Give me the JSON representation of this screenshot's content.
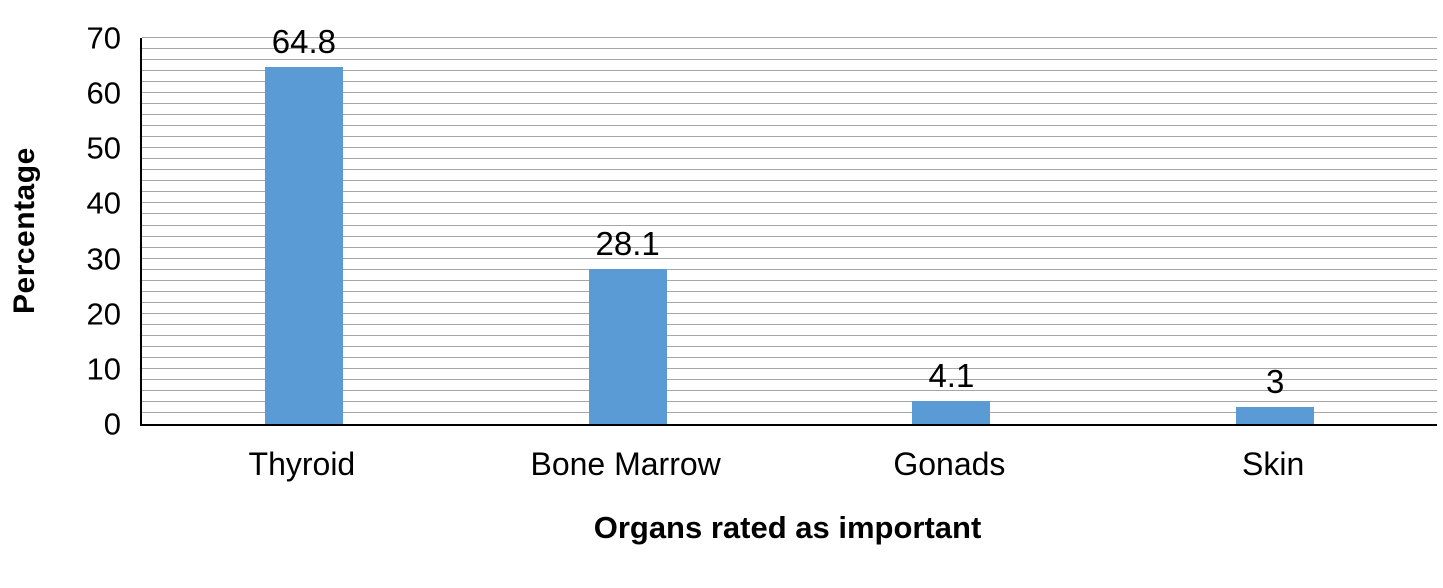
{
  "chart_data": {
    "type": "bar",
    "title": "",
    "categories": [
      "Thyroid",
      "Bone Marrow",
      "Gonads",
      "Skin"
    ],
    "values": [
      64.8,
      28.1,
      4.1,
      3
    ],
    "data_labels": [
      "64.8",
      "28.1",
      "4.1",
      "3"
    ],
    "xlabel": "Organs rated as important",
    "ylabel": "Percentage",
    "ylim": [
      0,
      70
    ],
    "yticks": [
      0,
      10,
      20,
      30,
      40,
      50,
      60,
      70
    ],
    "grid": "horizontal-minor",
    "grid_minor_step": 2,
    "legend_position": "none",
    "bar_color": "#5B9BD5",
    "gridline_color": "#a6a6a6",
    "axis_color": "#000000",
    "text_color": "#000000"
  }
}
